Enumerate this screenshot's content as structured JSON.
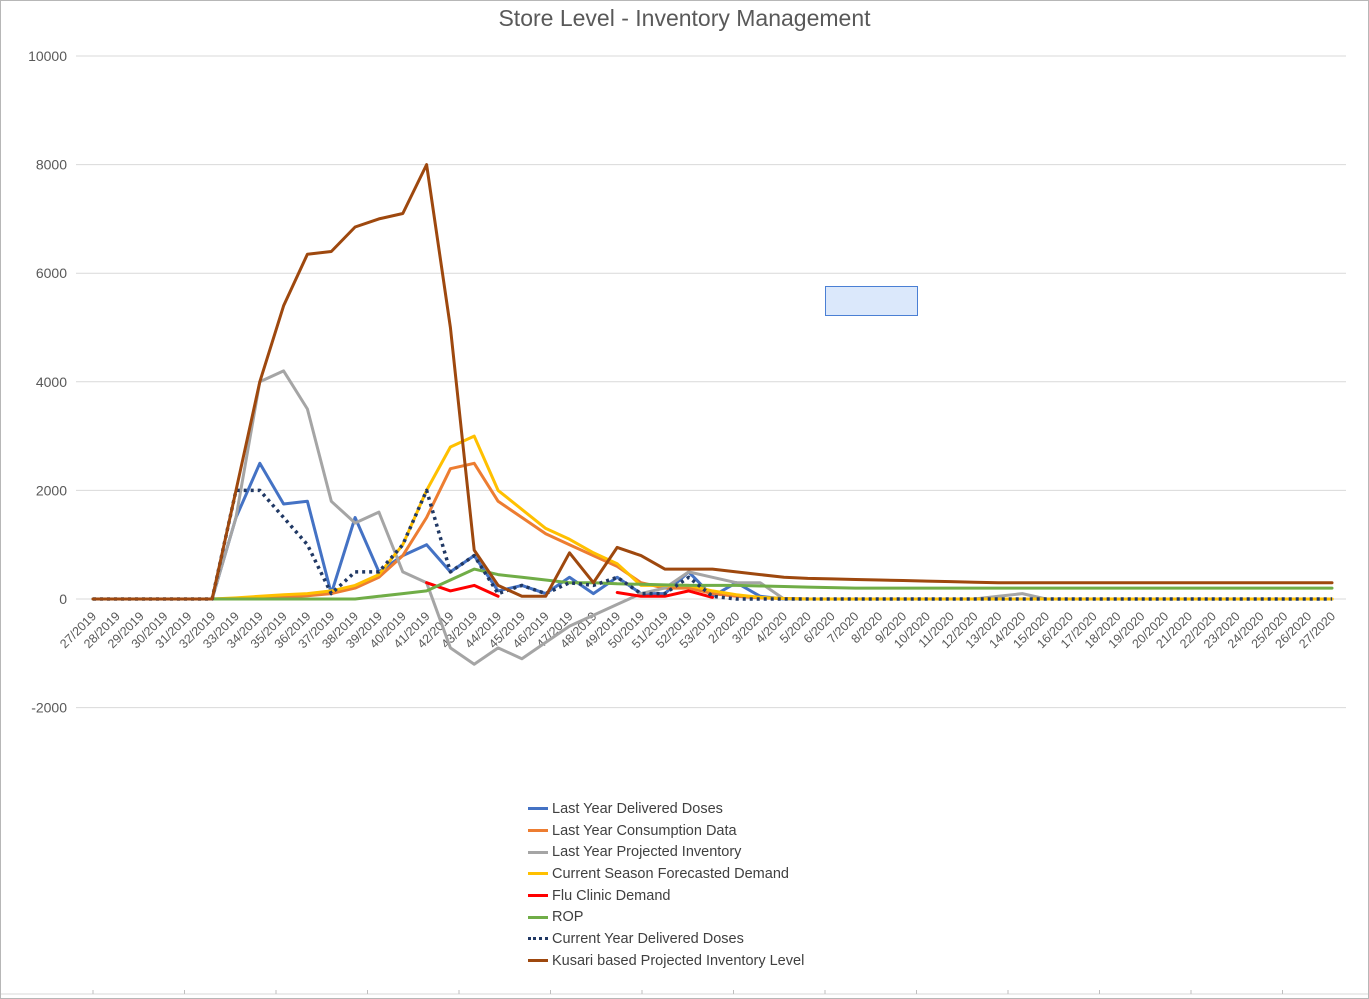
{
  "chart_data": {
    "type": "line",
    "title": "Store Level - Inventory Management",
    "xlabel": "",
    "ylabel": "",
    "ylim": [
      -2000,
      10000
    ],
    "y_ticks": [
      -2000,
      0,
      2000,
      4000,
      6000,
      8000,
      10000
    ],
    "grid": true,
    "legend_position": "bottom",
    "categories": [
      "27/2019",
      "28/2019",
      "29/2019",
      "30/2019",
      "31/2019",
      "32/2019",
      "33/2019",
      "34/2019",
      "35/2019",
      "36/2019",
      "37/2019",
      "38/2019",
      "39/2019",
      "40/2019",
      "41/2019",
      "42/2019",
      "43/2019",
      "44/2019",
      "45/2019",
      "46/2019",
      "47/2019",
      "48/2019",
      "49/2019",
      "50/2019",
      "51/2019",
      "52/2019",
      "53/2019",
      "2/2020",
      "3/2020",
      "4/2020",
      "5/2020",
      "6/2020",
      "7/2020",
      "8/2020",
      "9/2020",
      "10/2020",
      "11/2020",
      "12/2020",
      "13/2020",
      "14/2020",
      "15/2020",
      "16/2020",
      "17/2020",
      "18/2020",
      "19/2020",
      "20/2020",
      "21/2020",
      "22/2020",
      "23/2020",
      "24/2020",
      "25/2020",
      "26/2020",
      "27/2020"
    ],
    "series": [
      {
        "name": "Last Year Delivered Doses",
        "color": "#4472c4",
        "dash": false,
        "values": [
          0,
          0,
          0,
          0,
          0,
          0,
          1500,
          2500,
          1750,
          1800,
          100,
          1500,
          500,
          800,
          1000,
          500,
          800,
          150,
          250,
          100,
          400,
          100,
          400,
          100,
          100,
          500,
          50,
          300,
          50,
          0,
          0,
          0,
          0,
          0,
          0,
          0,
          0,
          0,
          0,
          0,
          0,
          0,
          0,
          0,
          0,
          0,
          0,
          0,
          0,
          0,
          0,
          0,
          0
        ]
      },
      {
        "name": "Last Year Consumption Data",
        "color": "#ed7d31",
        "dash": false,
        "values": [
          null,
          null,
          null,
          null,
          null,
          0,
          10,
          20,
          40,
          60,
          100,
          200,
          400,
          800,
          1500,
          2400,
          2500,
          1800,
          1500,
          1200,
          1000,
          800,
          600,
          300,
          200,
          200,
          100,
          50,
          20,
          10,
          0,
          0,
          0,
          0,
          0,
          0,
          0,
          0,
          0,
          0,
          0,
          0,
          0,
          0,
          0,
          0,
          0,
          0,
          0,
          0,
          0,
          0,
          0
        ]
      },
      {
        "name": "Last Year Projected Inventory",
        "color": "#a5a5a5",
        "dash": false,
        "values": [
          0,
          0,
          0,
          0,
          0,
          0,
          1500,
          4000,
          4200,
          3500,
          1800,
          1400,
          1600,
          500,
          300,
          -900,
          -1200,
          -900,
          -1100,
          -800,
          -500,
          -300,
          -100,
          100,
          200,
          500,
          400,
          300,
          300,
          0,
          0,
          0,
          0,
          0,
          0,
          0,
          0,
          0,
          50,
          100,
          0,
          0,
          0,
          0,
          0,
          0,
          0,
          0,
          0,
          0,
          0,
          0,
          0
        ]
      },
      {
        "name": "Current Season Forecasted Demand",
        "color": "#ffc000",
        "dash": false,
        "values": [
          null,
          null,
          null,
          null,
          null,
          0,
          20,
          50,
          80,
          100,
          150,
          250,
          450,
          1000,
          2000,
          2800,
          3000,
          2000,
          1650,
          1300,
          1100,
          850,
          650,
          250,
          250,
          250,
          150,
          80,
          30,
          10,
          0,
          0,
          0,
          0,
          0,
          0,
          0,
          0,
          0,
          0,
          0,
          0,
          0,
          0,
          0,
          0,
          0,
          0,
          0,
          0,
          0,
          0,
          0
        ]
      },
      {
        "name": "Flu Clinic Demand",
        "color": "#ff0000",
        "dash": false,
        "values": [
          null,
          null,
          null,
          null,
          null,
          null,
          null,
          null,
          null,
          null,
          null,
          null,
          null,
          null,
          300,
          150,
          250,
          50,
          null,
          null,
          null,
          null,
          120,
          50,
          50,
          150,
          30,
          null,
          null,
          null,
          null,
          null,
          null,
          null,
          null,
          null,
          null,
          null,
          null,
          null,
          null,
          null,
          null,
          null,
          null,
          null,
          null,
          null,
          null,
          null,
          null,
          null,
          null
        ]
      },
      {
        "name": "ROP",
        "color": "#70ad47",
        "dash": false,
        "values": [
          0,
          0,
          0,
          0,
          0,
          0,
          0,
          0,
          0,
          0,
          0,
          0,
          50,
          100,
          150,
          350,
          550,
          450,
          400,
          350,
          300,
          300,
          280,
          270,
          260,
          250,
          250,
          250,
          240,
          230,
          220,
          210,
          200,
          200,
          200,
          200,
          200,
          200,
          200,
          200,
          200,
          200,
          200,
          200,
          200,
          200,
          200,
          200,
          200,
          200,
          200,
          200,
          200
        ]
      },
      {
        "name": "Current Year Delivered Doses",
        "color": "#203864",
        "dash": true,
        "values": [
          0,
          0,
          0,
          0,
          0,
          0,
          2000,
          2000,
          1500,
          1000,
          100,
          500,
          500,
          1000,
          2000,
          500,
          800,
          100,
          250,
          100,
          300,
          250,
          400,
          100,
          100,
          400,
          50,
          0,
          0,
          0,
          0,
          0,
          0,
          0,
          0,
          0,
          0,
          0,
          0,
          0,
          0,
          0,
          0,
          0,
          0,
          0,
          0,
          0,
          0,
          0,
          0,
          0,
          0
        ]
      },
      {
        "name": "Kusari based Projected Inventory Level",
        "color": "#9e480e",
        "dash": false,
        "values": [
          0,
          0,
          0,
          0,
          0,
          0,
          2000,
          4000,
          5400,
          6350,
          6400,
          6850,
          7000,
          7100,
          8000,
          5000,
          900,
          250,
          50,
          50,
          850,
          300,
          950,
          800,
          550,
          550,
          550,
          500,
          450,
          400,
          380,
          370,
          360,
          350,
          340,
          330,
          320,
          310,
          300,
          300,
          300,
          300,
          300,
          300,
          300,
          300,
          300,
          300,
          300,
          300,
          300,
          300,
          300
        ]
      }
    ]
  }
}
